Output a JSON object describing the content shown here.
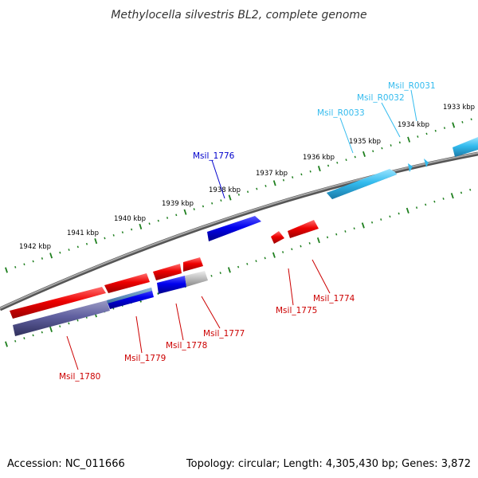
{
  "title": "Methylocella silvestris BL2, complete genome",
  "footer": {
    "accession": "Accession: NC_011666",
    "summary": "Topology: circular; Length: 4,305,430 bp; Genes: 3,872"
  },
  "colors": {
    "backbone": "#888888",
    "ruler_ticks": "#1e7f1e",
    "forward_cds": "#ee0000",
    "reverse_cds": "#0000dd",
    "rna": "#33bbee",
    "pseudogene": "#8080a8",
    "label_red": "#cc0000",
    "label_blue": "#0000cc",
    "label_cyan": "#33bbee"
  },
  "ruler_labels": [
    {
      "kbp": 1933,
      "text": "1933 kbp"
    },
    {
      "kbp": 1934,
      "text": "1934 kbp"
    },
    {
      "kbp": 1935,
      "text": "1935 kbp"
    },
    {
      "kbp": 1936,
      "text": "1936 kbp"
    },
    {
      "kbp": 1937,
      "text": "1937 kbp"
    },
    {
      "kbp": 1938,
      "text": "1938 kbp"
    },
    {
      "kbp": 1939,
      "text": "1939 kbp"
    },
    {
      "kbp": 1940,
      "text": "1940 kbp"
    },
    {
      "kbp": 1941,
      "text": "1941 kbp"
    },
    {
      "kbp": 1942,
      "text": "1942 kbp"
    }
  ],
  "gene_labels": [
    {
      "text": "Msil_R0031",
      "color": "label_cyan"
    },
    {
      "text": "Msil_R0032",
      "color": "label_cyan"
    },
    {
      "text": "Msil_R0033",
      "color": "label_cyan"
    },
    {
      "text": "Msil_1776",
      "color": "label_blue"
    },
    {
      "text": "Msil_1774",
      "color": "label_red"
    },
    {
      "text": "Msil_1775",
      "color": "label_red"
    },
    {
      "text": "Msil_1777",
      "color": "label_red"
    },
    {
      "text": "Msil_1778",
      "color": "label_red"
    },
    {
      "text": "Msil_1779",
      "color": "label_red"
    },
    {
      "text": "Msil_1780",
      "color": "label_red"
    }
  ]
}
